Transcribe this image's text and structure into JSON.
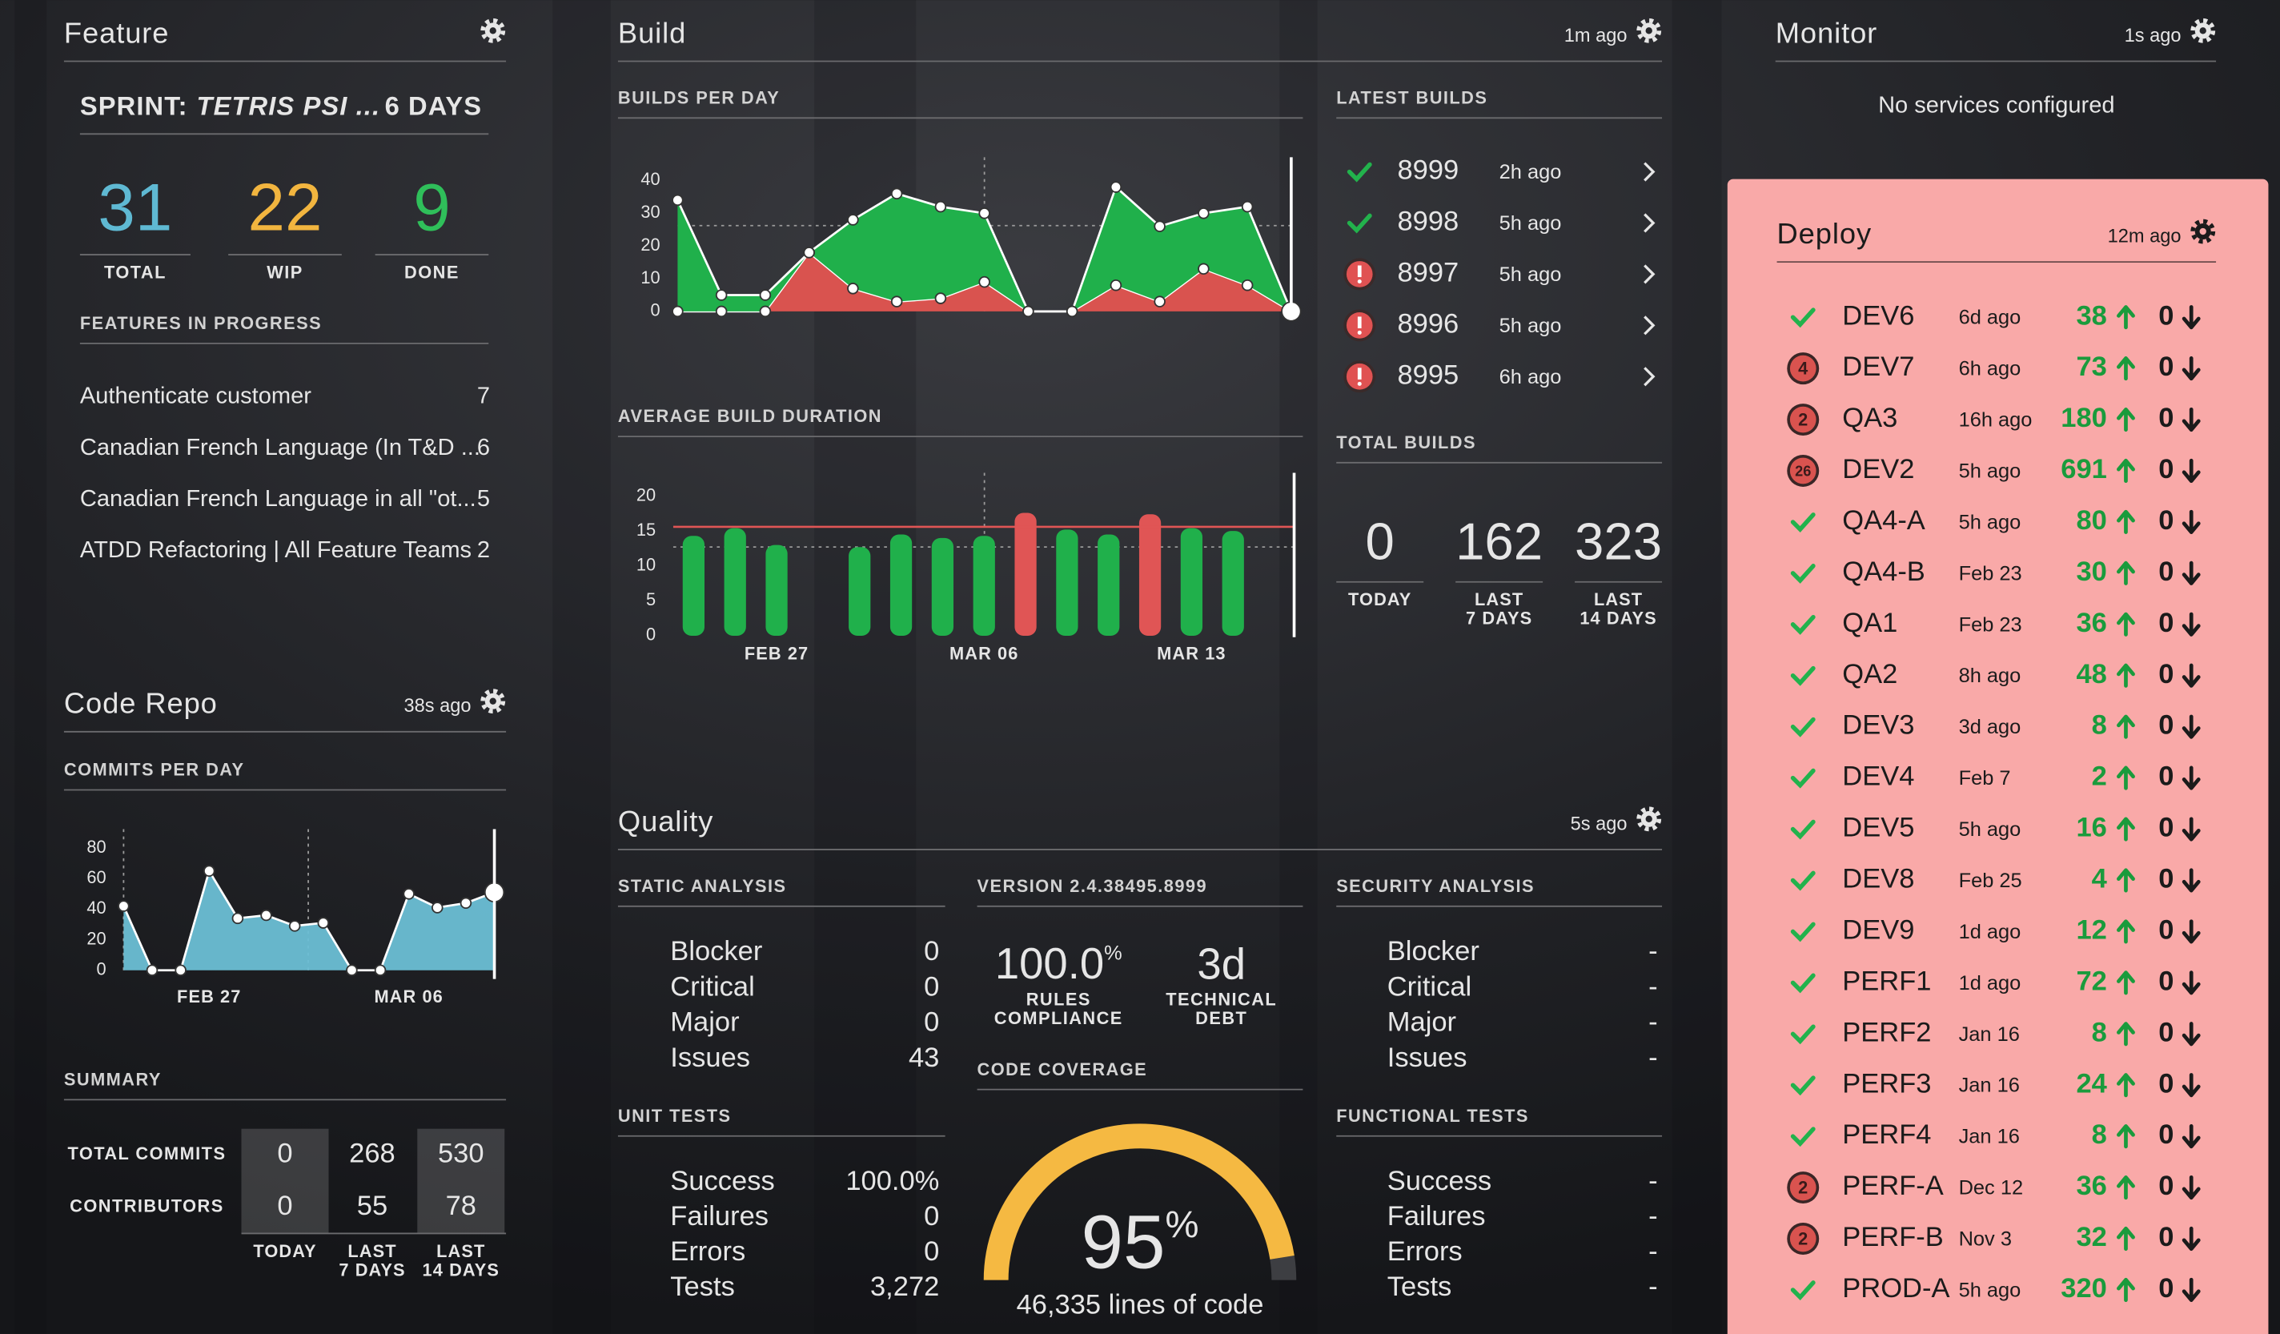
{
  "feature": {
    "title": "Feature",
    "sprint": {
      "label": "SPRINT:",
      "name": "TETRIS PSI ...",
      "remaining": "6 DAYS"
    },
    "stats": [
      {
        "value": 31,
        "label": "TOTAL",
        "color": "#5fb9d3"
      },
      {
        "value": 22,
        "label": "WIP",
        "color": "#f2b53f"
      },
      {
        "value": 9,
        "label": "DONE",
        "color": "#2fbf5a"
      }
    ],
    "in_progress": {
      "title": "FEATURES IN PROGRESS",
      "items": [
        {
          "name": "Authenticate customer",
          "count": 7
        },
        {
          "name": "Canadian French Language (In T&D ...",
          "count": 6
        },
        {
          "name": "Canadian French Language in all \"ot...",
          "count": 5
        },
        {
          "name": "ATDD Refactoring | All Feature Teams",
          "count": 2
        }
      ]
    }
  },
  "code_repo": {
    "title": "Code Repo",
    "updated": "38s ago",
    "commits_per_day": {
      "type": "area",
      "title": "COMMITS PER DAY",
      "categories": [
        null,
        null,
        null,
        "FEB 27",
        null,
        null,
        null,
        null,
        null,
        null,
        "MAR 06",
        null,
        null,
        null
      ],
      "values": [
        42,
        0,
        0,
        65,
        34,
        36,
        29,
        31,
        0,
        0,
        50,
        41,
        44,
        51
      ],
      "color": "#6bbfd5",
      "ylim": [
        0,
        80
      ],
      "yticks": [
        0,
        20,
        40,
        60,
        80
      ]
    },
    "summary": {
      "title": "SUMMARY",
      "columns": [
        [
          "TODAY"
        ],
        [
          "LAST",
          "7 DAYS"
        ],
        [
          "LAST",
          "14 DAYS"
        ]
      ],
      "rows": [
        {
          "label": "TOTAL COMMITS",
          "values": [
            0,
            268,
            530
          ]
        },
        {
          "label": "CONTRIBUTORS",
          "values": [
            0,
            55,
            78
          ]
        }
      ]
    }
  },
  "build": {
    "title": "Build",
    "updated": "1m ago",
    "builds_per_day": {
      "type": "stacked-area",
      "title": "BUILDS PER DAY",
      "series": [
        {
          "color": "#d9534f",
          "values": [
            0,
            0,
            0,
            18,
            7,
            3,
            4,
            9,
            0,
            0,
            8,
            3,
            13,
            8,
            0
          ]
        },
        {
          "color": "#20b04b",
          "values": [
            34,
            5,
            5,
            0,
            21,
            33,
            28,
            21,
            0,
            0,
            30,
            23,
            17,
            24,
            0
          ]
        }
      ],
      "ylim": [
        0,
        40
      ],
      "yticks": [
        0,
        10,
        20,
        30,
        40
      ]
    },
    "average_build_duration": {
      "type": "bar",
      "title": "AVERAGE BUILD DURATION",
      "categories": [
        null,
        null,
        "FEB 27",
        null,
        null,
        null,
        null,
        "MAR 06",
        null,
        null,
        null,
        null,
        "MAR 13",
        null
      ],
      "values": [
        14.3,
        15.4,
        13,
        null,
        12.7,
        14.5,
        14,
        14.3,
        17.6,
        15.2,
        14.5,
        17.4,
        15.4,
        15
      ],
      "color": "#20b04b",
      "alert_color": "#e05555",
      "threshold": 15.6,
      "ylim": [
        0,
        20
      ],
      "yticks": [
        0,
        5,
        10,
        15,
        20
      ]
    },
    "latest_builds": {
      "title": "LATEST BUILDS",
      "items": [
        {
          "status": "success",
          "number": "8999",
          "age": "2h ago"
        },
        {
          "status": "success",
          "number": "8998",
          "age": "5h ago"
        },
        {
          "status": "failed",
          "number": "8997",
          "age": "5h ago"
        },
        {
          "status": "failed",
          "number": "8996",
          "age": "5h ago"
        },
        {
          "status": "failed",
          "number": "8995",
          "age": "6h ago"
        }
      ]
    },
    "total_builds": {
      "title": "TOTAL BUILDS",
      "items": [
        {
          "value": 0,
          "label": [
            "TODAY"
          ]
        },
        {
          "value": 162,
          "label": [
            "LAST",
            "7 DAYS"
          ]
        },
        {
          "value": 323,
          "label": [
            "LAST",
            "14 DAYS"
          ]
        }
      ]
    }
  },
  "monitor": {
    "title": "Monitor",
    "updated": "1s ago",
    "message": "No services configured"
  },
  "deploy": {
    "title": "Deploy",
    "updated": "12m ago",
    "items": [
      {
        "name": "DEV6",
        "age": "6d ago",
        "up": 38,
        "down": 0,
        "issues": null
      },
      {
        "name": "DEV7",
        "age": "6h ago",
        "up": 73,
        "down": 0,
        "issues": 4
      },
      {
        "name": "QA3",
        "age": "16h ago",
        "up": 180,
        "down": 0,
        "issues": 2
      },
      {
        "name": "DEV2",
        "age": "5h ago",
        "up": 691,
        "down": 0,
        "issues": 26
      },
      {
        "name": "QA4-A",
        "age": "5h ago",
        "up": 80,
        "down": 0,
        "issues": null
      },
      {
        "name": "QA4-B",
        "age": "Feb 23",
        "up": 30,
        "down": 0,
        "issues": null
      },
      {
        "name": "QA1",
        "age": "Feb 23",
        "up": 36,
        "down": 0,
        "issues": null
      },
      {
        "name": "QA2",
        "age": "8h ago",
        "up": 48,
        "down": 0,
        "issues": null
      },
      {
        "name": "DEV3",
        "age": "3d ago",
        "up": 8,
        "down": 0,
        "issues": null
      },
      {
        "name": "DEV4",
        "age": "Feb 7",
        "up": 2,
        "down": 0,
        "issues": null
      },
      {
        "name": "DEV5",
        "age": "5h ago",
        "up": 16,
        "down": 0,
        "issues": null
      },
      {
        "name": "DEV8",
        "age": "Feb 25",
        "up": 4,
        "down": 0,
        "issues": null
      },
      {
        "name": "DEV9",
        "age": "1d ago",
        "up": 12,
        "down": 0,
        "issues": null
      },
      {
        "name": "PERF1",
        "age": "1d ago",
        "up": 72,
        "down": 0,
        "issues": null
      },
      {
        "name": "PERF2",
        "age": "Jan 16",
        "up": 8,
        "down": 0,
        "issues": null
      },
      {
        "name": "PERF3",
        "age": "Jan 16",
        "up": 24,
        "down": 0,
        "issues": null
      },
      {
        "name": "PERF4",
        "age": "Jan 16",
        "up": 8,
        "down": 0,
        "issues": null
      },
      {
        "name": "PERF-A",
        "age": "Dec 12",
        "up": 36,
        "down": 0,
        "issues": 2
      },
      {
        "name": "PERF-B",
        "age": "Nov 3",
        "up": 32,
        "down": 0,
        "issues": 2
      },
      {
        "name": "PROD-A",
        "age": "5h ago",
        "up": 320,
        "down": 0,
        "issues": null
      }
    ]
  },
  "quality": {
    "title": "Quality",
    "updated": "5s ago",
    "static_analysis": {
      "title": "STATIC ANALYSIS",
      "rows": [
        [
          "Blocker",
          0
        ],
        [
          "Critical",
          0
        ],
        [
          "Major",
          0
        ],
        [
          "Issues",
          43
        ]
      ]
    },
    "version": "VERSION 2.4.38495.8999",
    "compliance": {
      "value": "100.0",
      "unit": "%",
      "label": [
        "RULES",
        "COMPLIANCE"
      ]
    },
    "debt": {
      "value": "3d",
      "label": [
        "TECHNICAL",
        "DEBT"
      ]
    },
    "coverage": {
      "type": "gauge",
      "title": "CODE COVERAGE",
      "value": 95,
      "unit": "%",
      "lim": [
        0,
        100
      ],
      "color": "#f5b942",
      "lines": "46,335 lines of code"
    },
    "security_analysis": {
      "title": "SECURITY ANALYSIS",
      "rows": [
        [
          "Blocker",
          "-"
        ],
        [
          "Critical",
          "-"
        ],
        [
          "Major",
          "-"
        ],
        [
          "Issues",
          "-"
        ]
      ]
    },
    "unit_tests": {
      "title": "UNIT TESTS",
      "rows": [
        [
          "Success",
          "100.0%"
        ],
        [
          "Failures",
          0
        ],
        [
          "Errors",
          0
        ],
        [
          "Tests",
          "3,272"
        ]
      ]
    },
    "functional_tests": {
      "title": "FUNCTIONAL TESTS",
      "rows": [
        [
          "Success",
          "-"
        ],
        [
          "Failures",
          "-"
        ],
        [
          "Errors",
          "-"
        ],
        [
          "Tests",
          "-"
        ]
      ]
    }
  }
}
